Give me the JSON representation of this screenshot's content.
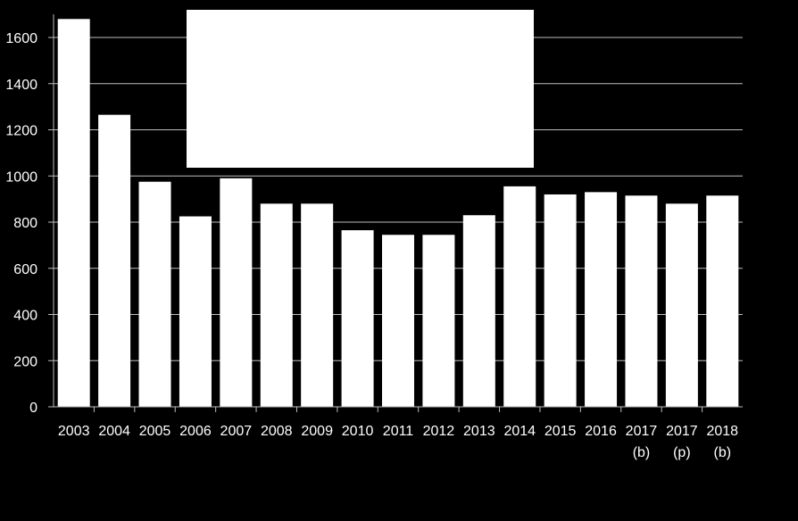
{
  "chart_data": {
    "type": "bar",
    "categories": [
      "2003",
      "2004",
      "2005",
      "2006",
      "2007",
      "2008",
      "2009",
      "2010",
      "2011",
      "2012",
      "2013",
      "2014",
      "2015",
      "2016",
      "2017",
      "2017",
      "2018"
    ],
    "category_notes": [
      "",
      "",
      "",
      "",
      "",
      "",
      "",
      "",
      "",
      "",
      "",
      "",
      "",
      "",
      "(b)",
      "(p)",
      "(b)"
    ],
    "values": [
      1680,
      1265,
      975,
      825,
      990,
      880,
      880,
      765,
      745,
      745,
      830,
      955,
      920,
      930,
      915,
      880,
      915
    ],
    "ylim": [
      0,
      1600
    ],
    "yticks": [
      0,
      200,
      400,
      600,
      800,
      1000,
      1200,
      1400,
      1600
    ],
    "grid": true,
    "title": "",
    "xlabel": "",
    "ylabel": "",
    "colors": {
      "background": "#000000",
      "bar": "#ffffff",
      "grid": "#bdbdbd",
      "text": "#ffffff",
      "overlay": "#ffffff"
    }
  },
  "overlay_box": {
    "color": "#ffffff"
  }
}
